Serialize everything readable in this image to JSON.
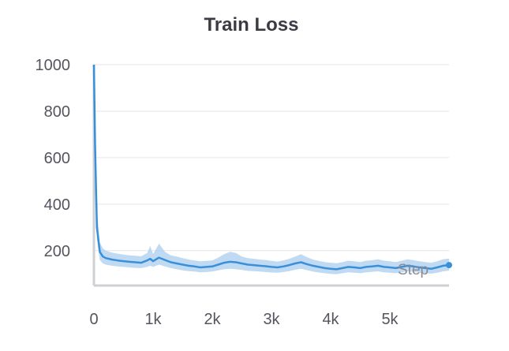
{
  "chart_data": {
    "type": "line",
    "title": "Train Loss",
    "xlabel": "Step",
    "ylabel": "",
    "xlim": [
      0,
      6000
    ],
    "ylim": [
      50,
      1000
    ],
    "xticks": [
      {
        "value": 0,
        "label": "0"
      },
      {
        "value": 1000,
        "label": "1k"
      },
      {
        "value": 2000,
        "label": "2k"
      },
      {
        "value": 3000,
        "label": "3k"
      },
      {
        "value": 4000,
        "label": "4k"
      },
      {
        "value": 5000,
        "label": "5k"
      }
    ],
    "yticks": [
      {
        "value": 200,
        "label": "200"
      },
      {
        "value": 400,
        "label": "400"
      },
      {
        "value": 600,
        "label": "600"
      },
      {
        "value": 800,
        "label": "800"
      },
      {
        "value": 1000,
        "label": "1000"
      }
    ],
    "grid": true,
    "legend": "none",
    "colors": {
      "line": "#3a8fd9",
      "band": "#a9cdee",
      "axis": "#cfd0d6",
      "grid": "#e6e6ea"
    },
    "series": [
      {
        "x": [
          0,
          20,
          50,
          100,
          150,
          200,
          300,
          400,
          500,
          600,
          700,
          800,
          900,
          950,
          1000,
          1100,
          1200,
          1300,
          1400,
          1500,
          1600,
          1700,
          1800,
          1900,
          2000,
          2100,
          2200,
          2300,
          2400,
          2500,
          2600,
          2700,
          2800,
          2900,
          3000,
          3100,
          3200,
          3300,
          3400,
          3500,
          3600,
          3700,
          3800,
          3900,
          4000,
          4100,
          4200,
          4300,
          4400,
          4500,
          4600,
          4700,
          4800,
          4900,
          5000,
          5100,
          5200,
          5300,
          5400,
          5500,
          5600,
          5700,
          5800,
          5900,
          6000
        ],
        "values": [
          1000,
          650,
          300,
          195,
          175,
          168,
          162,
          158,
          155,
          152,
          150,
          148,
          158,
          165,
          155,
          170,
          160,
          150,
          145,
          140,
          135,
          132,
          128,
          130,
          132,
          140,
          148,
          152,
          150,
          145,
          140,
          138,
          135,
          133,
          130,
          128,
          132,
          138,
          145,
          150,
          142,
          135,
          130,
          125,
          122,
          120,
          125,
          130,
          128,
          125,
          130,
          132,
          135,
          130,
          128,
          125,
          130,
          135,
          132,
          128,
          125,
          122,
          128,
          135,
          138
        ],
        "lower": [
          1000,
          560,
          250,
          160,
          145,
          140,
          135,
          132,
          130,
          128,
          126,
          125,
          130,
          135,
          130,
          140,
          132,
          125,
          120,
          115,
          112,
          110,
          107,
          108,
          110,
          115,
          120,
          122,
          120,
          117,
          113,
          112,
          110,
          108,
          106,
          105,
          108,
          112,
          118,
          122,
          116,
          110,
          106,
          103,
          100,
          99,
          103,
          107,
          105,
          103,
          107,
          109,
          111,
          107,
          105,
          103,
          107,
          111,
          109,
          105,
          103,
          101,
          105,
          111,
          114
        ],
        "upper": [
          1000,
          760,
          380,
          235,
          210,
          200,
          192,
          187,
          183,
          180,
          178,
          176,
          190,
          220,
          185,
          230,
          195,
          180,
          175,
          168,
          162,
          158,
          154,
          156,
          158,
          170,
          185,
          195,
          190,
          175,
          168,
          165,
          162,
          160,
          156,
          153,
          158,
          165,
          175,
          185,
          172,
          162,
          156,
          151,
          148,
          146,
          151,
          157,
          154,
          151,
          157,
          159,
          163,
          157,
          154,
          151,
          157,
          163,
          159,
          154,
          151,
          148,
          154,
          163,
          166
        ]
      }
    ]
  }
}
